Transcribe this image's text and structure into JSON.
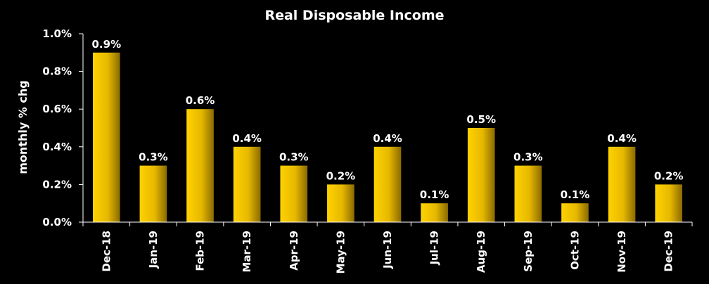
{
  "chart_data": {
    "type": "bar",
    "title": "Real Disposable Income",
    "ylabel": "monthly % chg",
    "xlabel": "",
    "categories": [
      "Dec-18",
      "Jan-19",
      "Feb-19",
      "Mar-19",
      "Apr-19",
      "May-19",
      "Jun-19",
      "Jul-19",
      "Aug-19",
      "Sep-19",
      "Oct-19",
      "Nov-19",
      "Dec-19"
    ],
    "values": [
      0.9,
      0.3,
      0.6,
      0.4,
      0.3,
      0.2,
      0.4,
      0.1,
      0.5,
      0.3,
      0.1,
      0.4,
      0.2
    ],
    "data_labels": [
      "0.9%",
      "0.3%",
      "0.6%",
      "0.4%",
      "0.3%",
      "0.2%",
      "0.4%",
      "0.1%",
      "0.5%",
      "0.3%",
      "0.1%",
      "0.4%",
      "0.2%"
    ],
    "ylim": [
      0,
      1.0
    ],
    "yticks": [
      0,
      0.2,
      0.4,
      0.6,
      0.8,
      1.0
    ],
    "ytick_labels": [
      "0.0%",
      "0.2%",
      "0.4%",
      "0.6%",
      "0.8%",
      "1.0%"
    ],
    "grid": false,
    "legend": "none",
    "colors": {
      "background": "#000000",
      "bar_light": "#FFD200",
      "bar_dark": "#8A6A00",
      "axis": "#FFFFFF",
      "text": "#FFFFFF"
    }
  }
}
